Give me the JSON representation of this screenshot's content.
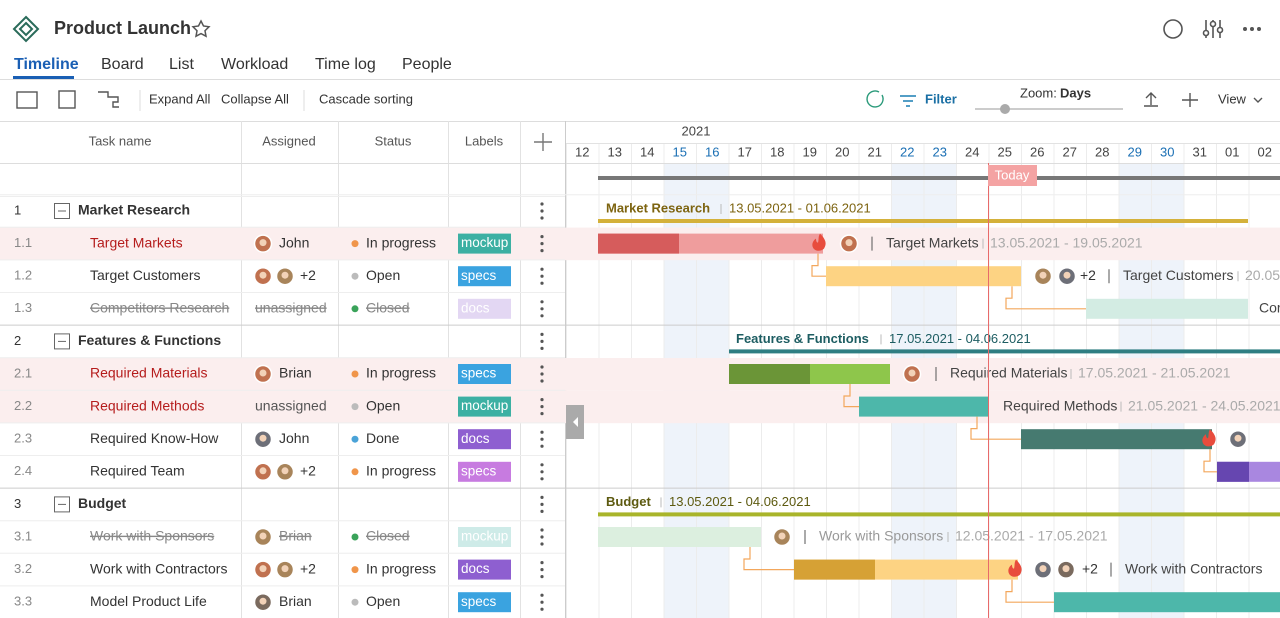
{
  "header": {
    "title": "Product Launch"
  },
  "tabs": [
    "Timeline",
    "Board",
    "List",
    "Workload",
    "Time log",
    "People"
  ],
  "toolbar": {
    "expand": "Expand All",
    "collapse": "Collapse All",
    "cascade": "Cascade sorting",
    "filter": "Filter",
    "zoom_label": "Zoom:",
    "zoom_value": "Days",
    "view": "View"
  },
  "columns": [
    "Task name",
    "Assigned",
    "Status",
    "Labels"
  ],
  "timeline": {
    "year": "2021",
    "days": [
      "12",
      "13",
      "14",
      "15",
      "16",
      "17",
      "18",
      "19",
      "20",
      "21",
      "22",
      "23",
      "24",
      "25",
      "26",
      "27",
      "28",
      "29",
      "30",
      "31",
      "01",
      "02"
    ],
    "today": "Today"
  },
  "rows": [
    {
      "num": "1",
      "name": "Market Research",
      "bar_label": "Market Research",
      "bar_dates": "13.05.2021 - 01.06.2021"
    },
    {
      "num": "1.1",
      "name": "Target Markets",
      "assigned": "John",
      "status": "In progress",
      "label": "mockup",
      "bar_label": "Target Markets",
      "bar_dates": "13.05.2021 - 19.05.2021"
    },
    {
      "num": "1.2",
      "name": "Target Customers",
      "extra": "+2",
      "status": "Open",
      "label": "specs",
      "bar_label": "Target Customers",
      "bar_dates": "20.05"
    },
    {
      "num": "1.3",
      "name": "Competitors Research",
      "assigned": "unassigned",
      "status": "Closed",
      "label": "docs",
      "bar_label": "Cor"
    },
    {
      "num": "2",
      "name": "Features & Functions",
      "bar_label": "Features & Functions",
      "bar_dates": "17.05.2021 - 04.06.2021"
    },
    {
      "num": "2.1",
      "name": "Required Materials",
      "assigned": "Brian",
      "status": "In progress",
      "label": "specs",
      "bar_label": "Required Materials",
      "bar_dates": "17.05.2021 - 21.05.2021"
    },
    {
      "num": "2.2",
      "name": "Required Methods",
      "assigned": "unassigned",
      "status": "Open",
      "label": "mockup",
      "bar_label": "Required Methods",
      "bar_dates": "21.05.2021 - 24.05.2021"
    },
    {
      "num": "2.3",
      "name": "Required Know-How",
      "assigned": "John",
      "status": "Done",
      "label": "docs"
    },
    {
      "num": "2.4",
      "name": "Required Team",
      "extra": "+2",
      "status": "In progress",
      "label": "specs"
    },
    {
      "num": "3",
      "name": "Budget",
      "bar_label": "Budget",
      "bar_dates": "13.05.2021 - 04.06.2021"
    },
    {
      "num": "3.1",
      "name": "Work with Sponsors",
      "assigned": "Brian",
      "status": "Closed",
      "label": "mockup",
      "bar_label": "Work with Sponsors",
      "bar_dates": "12.05.2021 - 17.05.2021"
    },
    {
      "num": "3.2",
      "name": "Work with Contractors",
      "extra": "+2",
      "status": "In progress",
      "label": "docs",
      "bar_label": "Work with Contractors"
    },
    {
      "num": "3.3",
      "name": "Model Product Life",
      "assigned": "Brian",
      "status": "Open",
      "label": "specs"
    }
  ]
}
